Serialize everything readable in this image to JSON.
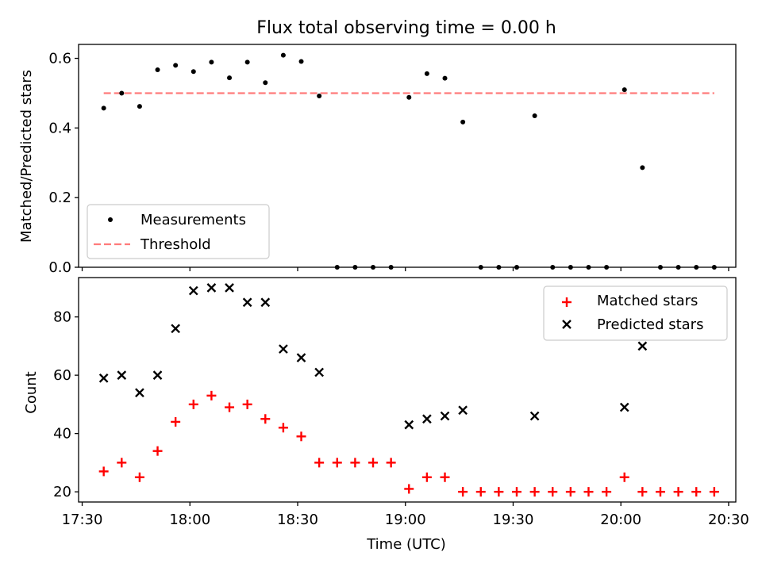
{
  "chart_data": [
    {
      "type": "scatter",
      "title": "Flux total observing time = 0.00 h",
      "xlabel": "",
      "ylabel": "Matched/Predicted stars",
      "ylim": [
        0,
        0.64
      ],
      "yticks": [
        0.0,
        0.2,
        0.4,
        0.6
      ],
      "ytick_labels": [
        "0.0",
        "0.2",
        "0.4",
        "0.6"
      ],
      "grid": false,
      "legend_position": "lower-left",
      "x": [
        "17:36",
        "17:41",
        "17:46",
        "17:51",
        "17:56",
        "18:01",
        "18:06",
        "18:11",
        "18:16",
        "18:21",
        "18:26",
        "18:31",
        "18:36",
        "18:41",
        "18:46",
        "18:51",
        "18:56",
        "19:01",
        "19:06",
        "19:11",
        "19:16",
        "19:21",
        "19:26",
        "19:31",
        "19:36",
        "19:41",
        "19:46",
        "19:51",
        "19:56",
        "20:01",
        "20:06",
        "20:11",
        "20:16",
        "20:21",
        "20:26"
      ],
      "series": [
        {
          "name": "Measurements",
          "marker": "dot",
          "color": "#000000",
          "values": [
            0.457,
            0.5,
            0.462,
            0.567,
            0.58,
            0.562,
            0.589,
            0.544,
            0.589,
            0.53,
            0.609,
            0.591,
            0.492,
            0.0,
            0.0,
            0.0,
            0.0,
            0.488,
            0.556,
            0.543,
            0.417,
            0.0,
            0.0,
            0.0,
            0.435,
            0.0,
            0.0,
            0.0,
            0.0,
            0.51,
            0.286,
            0.0,
            0.0,
            0.0,
            0.0
          ]
        },
        {
          "name": "Threshold",
          "marker": "dashed-line",
          "color": "#ff7b7b",
          "x": [
            "17:36",
            "20:26"
          ],
          "values": [
            0.5,
            0.5
          ]
        }
      ]
    },
    {
      "type": "scatter",
      "title": "",
      "xlabel": "Time (UTC)",
      "ylabel": "Count",
      "ylim": [
        16.5,
        93.5
      ],
      "yticks": [
        20,
        40,
        60,
        80
      ],
      "ytick_labels": [
        "20",
        "40",
        "60",
        "80"
      ],
      "xlim": [
        "17:29",
        "20:32"
      ],
      "xticks": [
        "17:30",
        "18:00",
        "18:30",
        "19:00",
        "19:30",
        "20:00",
        "20:30"
      ],
      "xtick_labels": [
        "17:30",
        "18:00",
        "18:30",
        "19:00",
        "19:30",
        "20:00",
        "20:30"
      ],
      "grid": false,
      "legend_position": "top-right",
      "series": [
        {
          "name": "Matched stars",
          "marker": "plus",
          "color": "#ff0000",
          "x": [
            "17:36",
            "17:41",
            "17:46",
            "17:51",
            "17:56",
            "18:01",
            "18:06",
            "18:11",
            "18:16",
            "18:21",
            "18:26",
            "18:31",
            "18:36",
            "18:41",
            "18:46",
            "18:51",
            "18:56",
            "19:01",
            "19:06",
            "19:11",
            "19:16",
            "19:21",
            "19:26",
            "19:31",
            "19:36",
            "19:41",
            "19:46",
            "19:51",
            "19:56",
            "20:01",
            "20:06",
            "20:11",
            "20:16",
            "20:21",
            "20:26"
          ],
          "values": [
            27,
            30,
            25,
            34,
            44,
            50,
            53,
            49,
            50,
            45,
            42,
            39,
            30,
            30,
            30,
            30,
            30,
            21,
            25,
            25,
            20,
            20,
            20,
            20,
            20,
            20,
            20,
            20,
            20,
            25,
            20,
            20,
            20,
            20,
            20
          ]
        },
        {
          "name": "Predicted stars",
          "marker": "x",
          "color": "#000000",
          "x": [
            "17:36",
            "17:41",
            "17:46",
            "17:51",
            "17:56",
            "18:01",
            "18:06",
            "18:11",
            "18:16",
            "18:21",
            "18:26",
            "18:31",
            "18:36",
            "19:01",
            "19:06",
            "19:11",
            "19:16",
            "19:36",
            "20:01",
            "20:06"
          ],
          "values": [
            59,
            60,
            54,
            60,
            76,
            89,
            90,
            90,
            85,
            85,
            69,
            66,
            61,
            43,
            45,
            46,
            48,
            46,
            49,
            70
          ]
        }
      ]
    }
  ]
}
